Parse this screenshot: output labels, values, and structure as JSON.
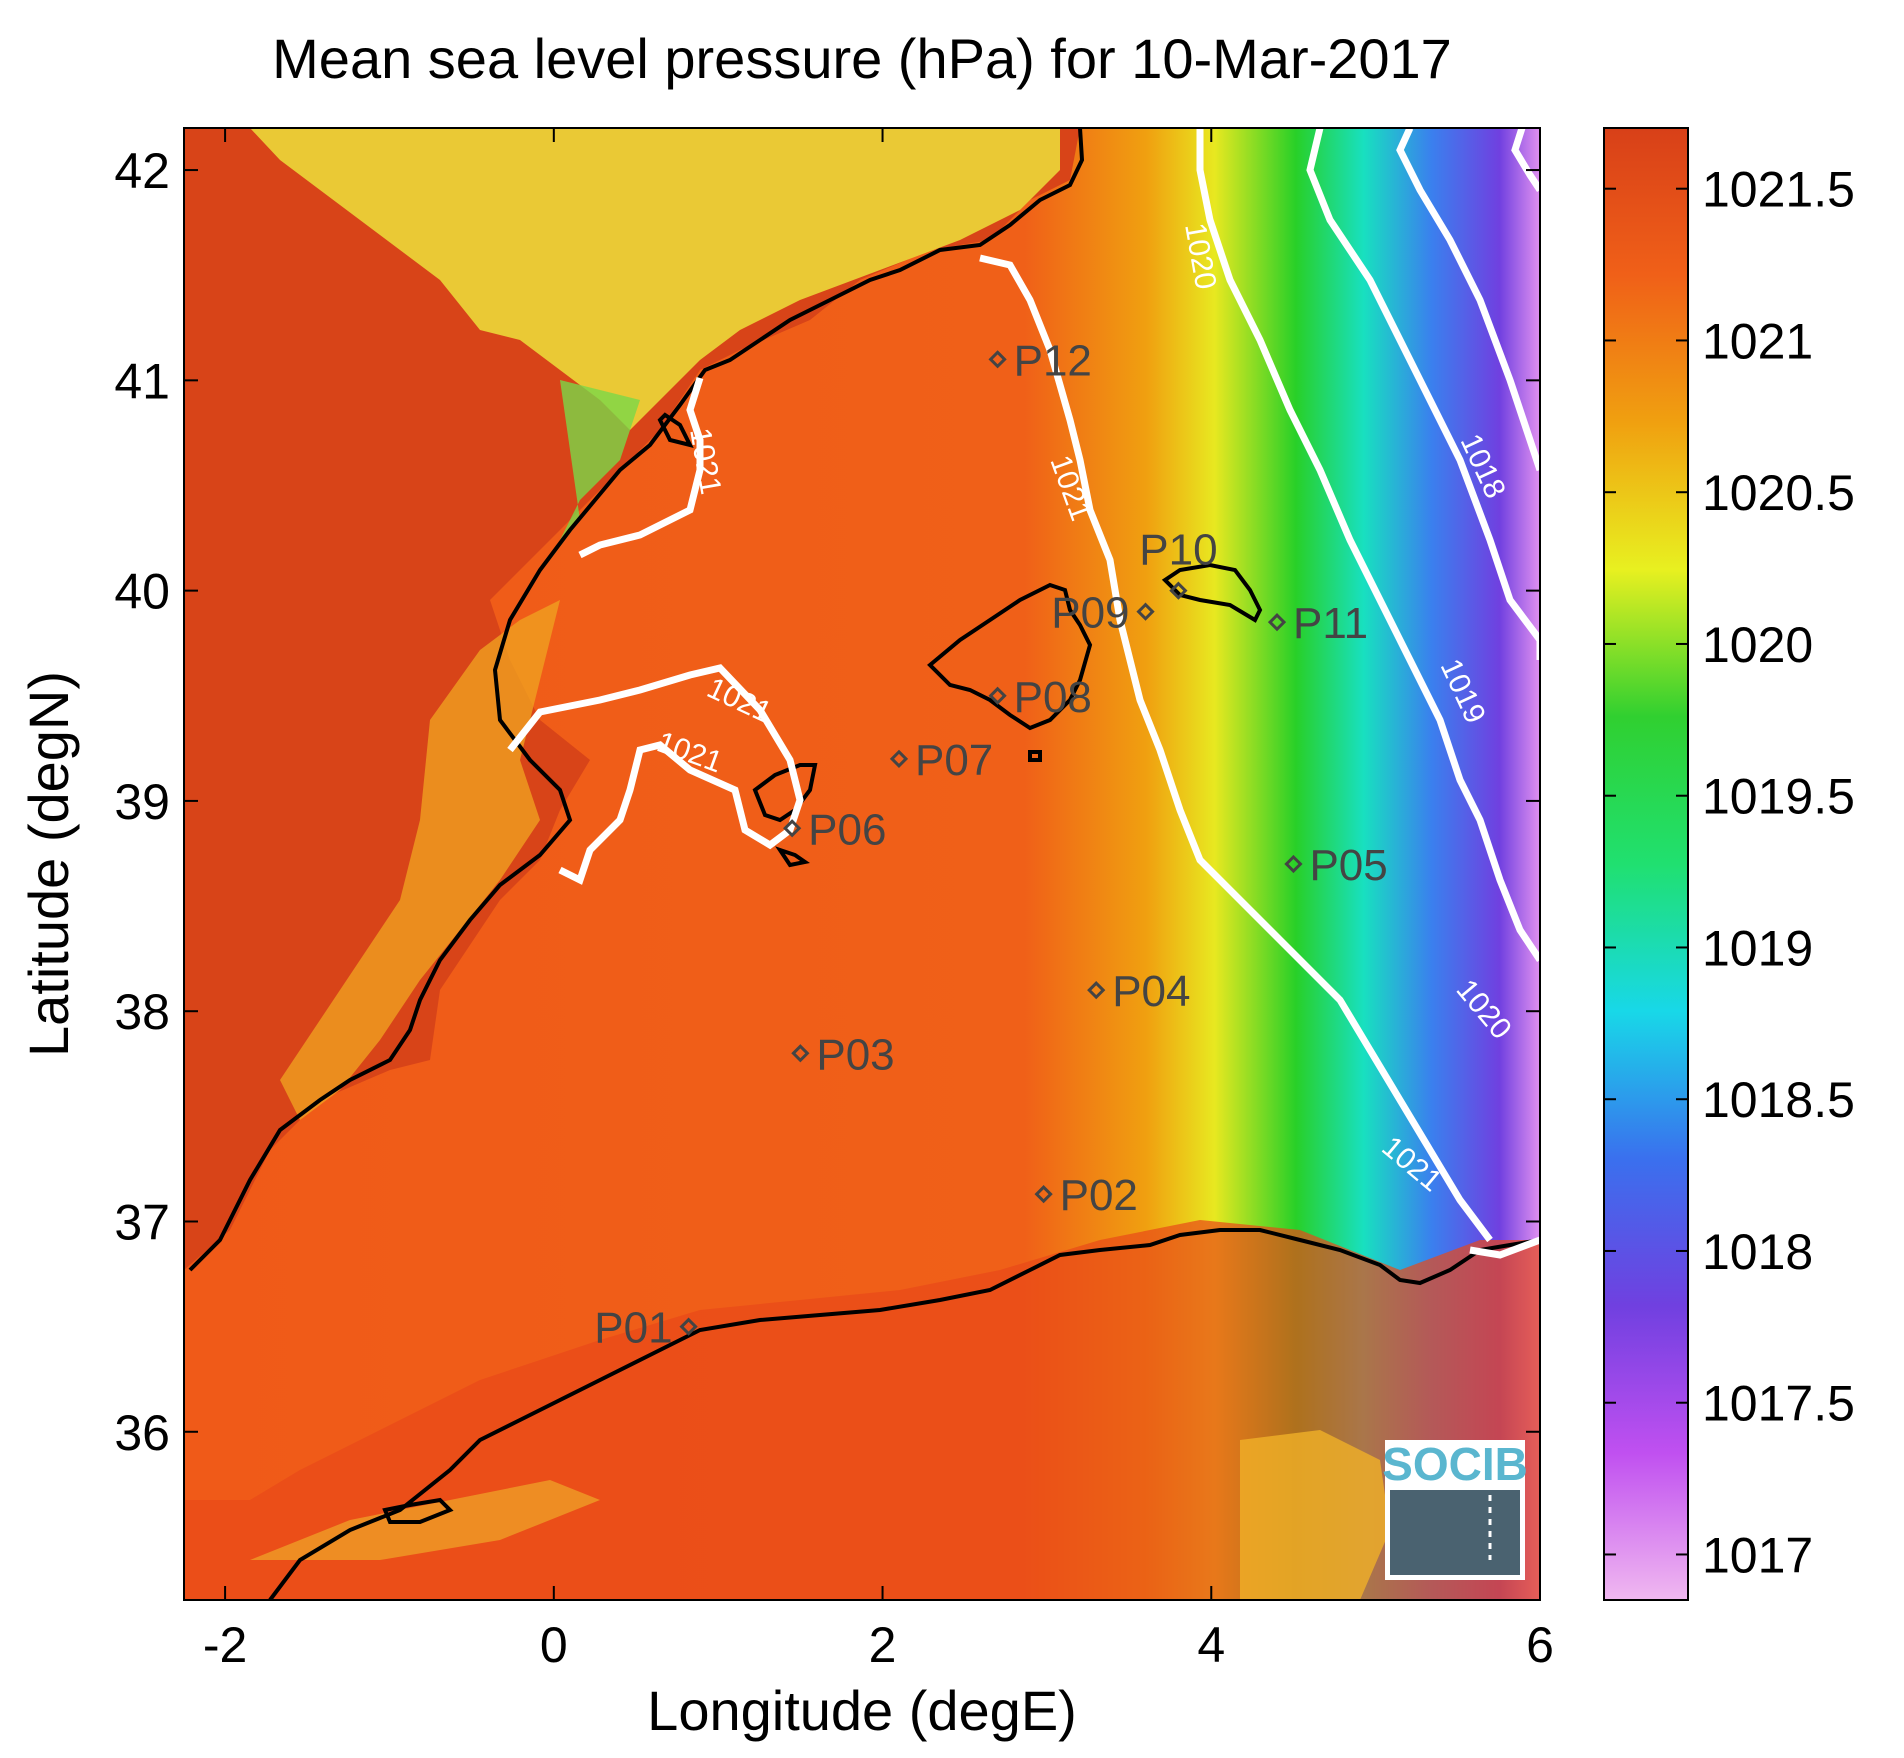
{
  "title": "Mean sea level pressure (hPa) for 10-Mar-2017",
  "xlabel": "Longitude (degE)",
  "ylabel": "Latitude (degN)",
  "chart_data": {
    "type": "heatmap",
    "title": "Mean sea level pressure (hPa) for 10-Mar-2017",
    "xlabel": "Longitude (degE)",
    "ylabel": "Latitude (degN)",
    "xlim": [
      -2.25,
      6
    ],
    "ylim": [
      35.2,
      42.2
    ],
    "xticks": [
      {
        "value": -2,
        "label": "-2"
      },
      {
        "value": 0,
        "label": "0"
      },
      {
        "value": 2,
        "label": "2"
      },
      {
        "value": 4,
        "label": "4"
      },
      {
        "value": 6,
        "label": "6"
      }
    ],
    "yticks": [
      {
        "value": 36,
        "label": "36"
      },
      {
        "value": 37,
        "label": "37"
      },
      {
        "value": 38,
        "label": "38"
      },
      {
        "value": 39,
        "label": "39"
      },
      {
        "value": 40,
        "label": "40"
      },
      {
        "value": 41,
        "label": "41"
      },
      {
        "value": 42,
        "label": "42"
      }
    ],
    "colorbar": {
      "min": 1016.85,
      "max": 1021.7,
      "ticks": [
        {
          "value": 1017,
          "label": "1017"
        },
        {
          "value": 1017.5,
          "label": "1017.5"
        },
        {
          "value": 1018,
          "label": "1018"
        },
        {
          "value": 1018.5,
          "label": "1018.5"
        },
        {
          "value": 1019,
          "label": "1019"
        },
        {
          "value": 1019.5,
          "label": "1019.5"
        },
        {
          "value": 1020,
          "label": "1020"
        },
        {
          "value": 1020.5,
          "label": "1020.5"
        },
        {
          "value": 1021,
          "label": "1021"
        },
        {
          "value": 1021.5,
          "label": "1021.5"
        }
      ],
      "colors": [
        "#f0b8f0",
        "#c050f0",
        "#7040e0",
        "#3a70ee",
        "#18d8e8",
        "#20e070",
        "#30d030",
        "#e8f020",
        "#f0a010",
        "#f06018",
        "#d84018"
      ]
    },
    "stations": [
      {
        "name": "P01",
        "lon": 0.82,
        "lat": 36.5,
        "label_side": "left"
      },
      {
        "name": "P02",
        "lon": 2.98,
        "lat": 37.13,
        "label_side": "right"
      },
      {
        "name": "P03",
        "lon": 1.5,
        "lat": 37.8,
        "label_side": "right"
      },
      {
        "name": "P04",
        "lon": 3.3,
        "lat": 38.1,
        "label_side": "right"
      },
      {
        "name": "P05",
        "lon": 4.5,
        "lat": 38.7,
        "label_side": "right"
      },
      {
        "name": "P06",
        "lon": 1.45,
        "lat": 38.87,
        "label_side": "right"
      },
      {
        "name": "P07",
        "lon": 2.1,
        "lat": 39.2,
        "label_side": "right"
      },
      {
        "name": "P08",
        "lon": 2.7,
        "lat": 39.5,
        "label_side": "right"
      },
      {
        "name": "P09",
        "lon": 3.6,
        "lat": 39.9,
        "label_side": "left"
      },
      {
        "name": "P10",
        "lon": 3.8,
        "lat": 40.0,
        "label_side": "above"
      },
      {
        "name": "P11",
        "lon": 4.4,
        "lat": 39.85,
        "label_side": "right"
      },
      {
        "name": "P12",
        "lon": 2.7,
        "lat": 41.1,
        "label_side": "right"
      }
    ],
    "contour_labels": [
      "1021",
      "1021",
      "1021",
      "1021",
      "1020",
      "1020",
      "1019",
      "1018",
      "1021"
    ]
  },
  "logo": {
    "text": "SOCIB"
  },
  "colors": {
    "land_low": "#d84018",
    "sea": "#f05818",
    "contour": "#ffffff",
    "coast": "#000000"
  }
}
